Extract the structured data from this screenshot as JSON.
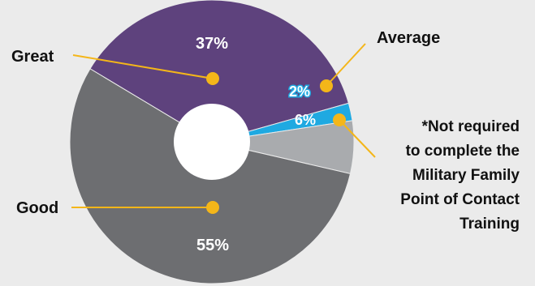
{
  "chart_data": {
    "type": "pie",
    "title": "",
    "legend": "none",
    "categories": [
      "Great",
      "Average",
      "*Not required to complete the Military Family Point of Contact Training",
      "Good"
    ],
    "values": [
      37,
      2,
      6,
      55
    ],
    "value_labels": [
      "37%",
      "2%",
      "6%",
      "55%"
    ],
    "colors": [
      "#5e427d",
      "#1fa9e1",
      "#a9abae",
      "#6d6e71"
    ],
    "donut_hole_color": "#ffffff",
    "callout_color": "#f4b619",
    "callout_lines": [
      [
        "Great"
      ],
      [
        "Average"
      ],
      [
        "*Not required",
        "to complete the",
        "Military Family",
        "Point of Contact",
        "Training"
      ],
      [
        "Good"
      ]
    ]
  }
}
